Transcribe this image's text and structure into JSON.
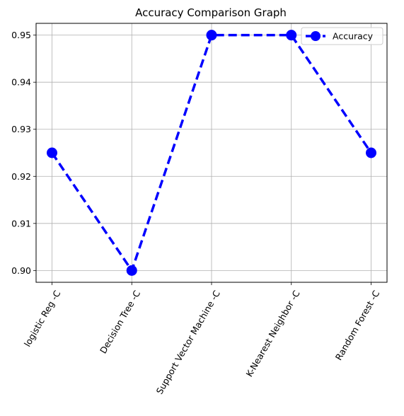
{
  "chart_data": {
    "type": "line",
    "title": "Accuracy Comparison Graph",
    "xlabel": "",
    "ylabel": "",
    "categories": [
      "logistic Reg -C",
      "Decision Tree -C",
      "Support Vector Machine -C",
      "K-Nearest Neighbor -C",
      "Random Forest -C"
    ],
    "series": [
      {
        "name": "Accuracy",
        "values": [
          0.925,
          0.9,
          0.95,
          0.95,
          0.925
        ],
        "color": "#0000ff",
        "line_style": "dashed",
        "marker": "circle"
      }
    ],
    "yticks": [
      "0.90",
      "0.91",
      "0.92",
      "0.93",
      "0.94",
      "0.95"
    ],
    "ylim": [
      0.8975,
      0.9525
    ],
    "grid": true,
    "legend_position": "top-right",
    "xtick_rotation": 60
  }
}
